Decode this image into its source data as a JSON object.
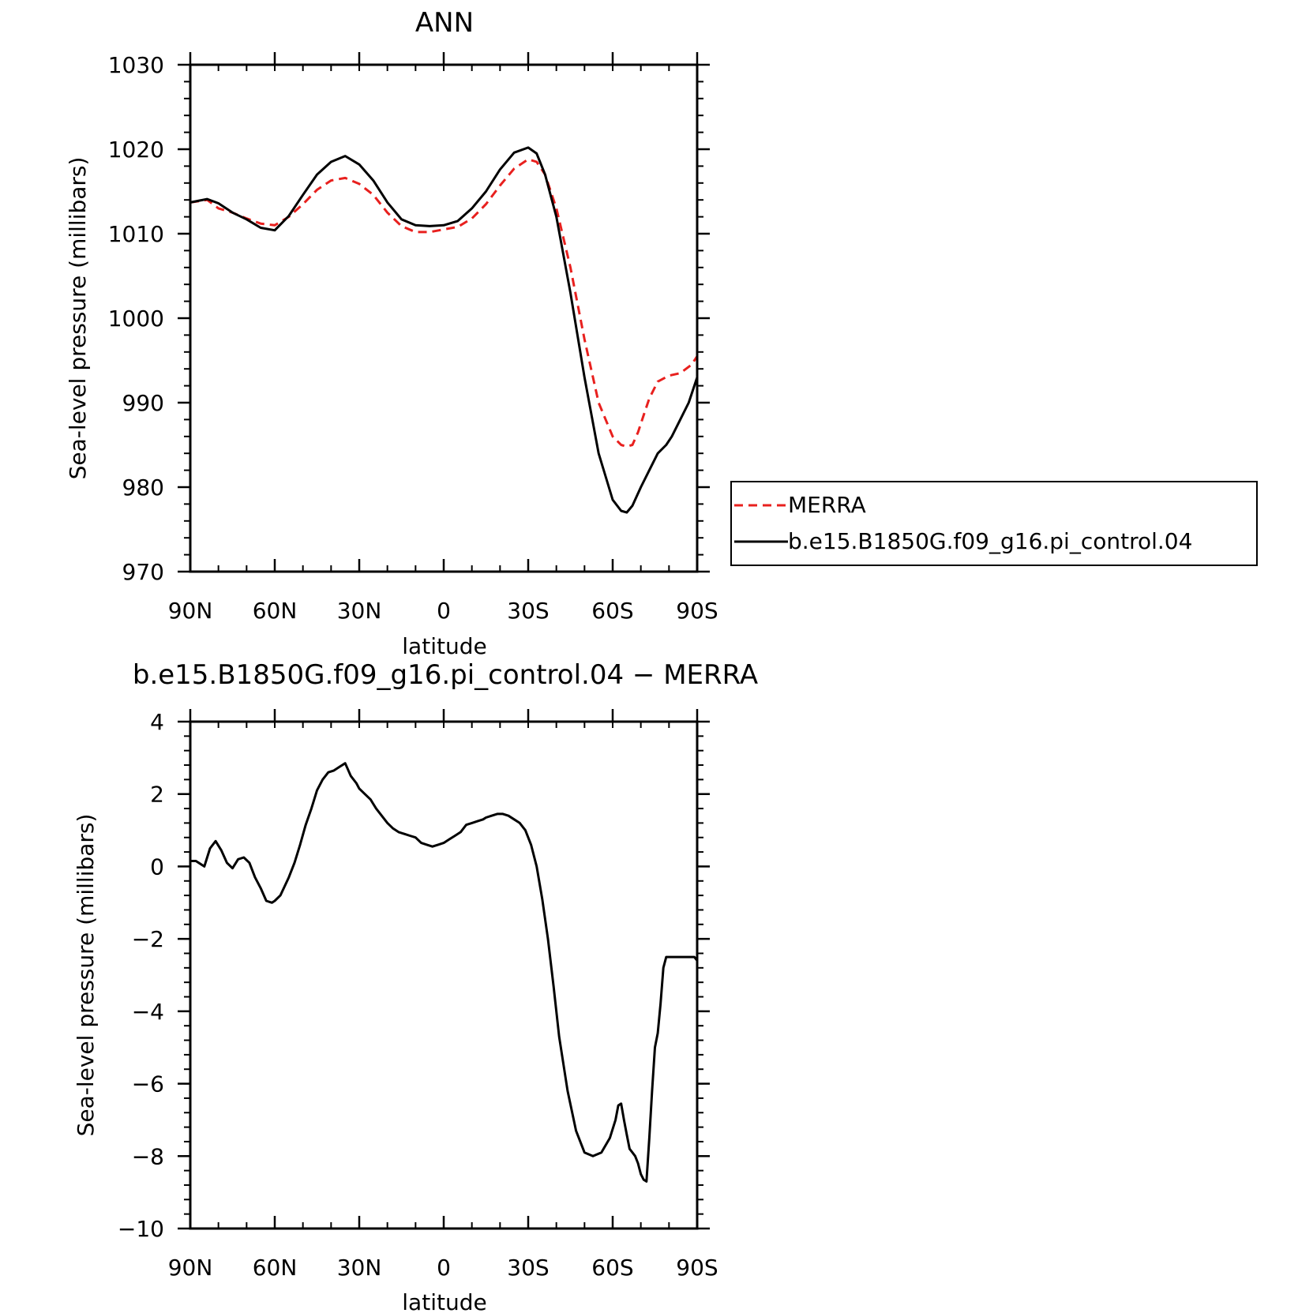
{
  "chart_data": [
    {
      "type": "line",
      "title": "ANN",
      "xlabel": "latitude",
      "ylabel": "Sea-level pressure (millibars)",
      "xlim": [
        90,
        -90
      ],
      "ylim": [
        970,
        1030
      ],
      "xticks": [
        90,
        60,
        30,
        0,
        -30,
        -60,
        -90
      ],
      "xtick_labels": [
        "90N",
        "60N",
        "30N",
        "0",
        "30S",
        "60S",
        "90S"
      ],
      "yticks": [
        970,
        980,
        990,
        1000,
        1010,
        1020,
        1030
      ],
      "ytick_labels": [
        "970",
        "980",
        "990",
        "1000",
        "1010",
        "1020",
        "1030"
      ],
      "grid": false,
      "legend_placement": "right",
      "series": [
        {
          "name": "MERRA",
          "color": "#e8201e",
          "style": "dashed",
          "x": [
            90,
            84,
            80,
            75,
            70,
            65,
            60,
            55,
            50,
            45,
            40,
            35,
            30,
            25,
            20,
            15,
            10,
            5,
            0,
            -5,
            -10,
            -15,
            -20,
            -25,
            -30,
            -33,
            -36,
            -40,
            -45,
            -50,
            -55,
            -60,
            -63,
            -65,
            -67,
            -69,
            -71,
            -73,
            -76,
            -80,
            -84,
            -88,
            -90
          ],
          "y": [
            1013.7,
            1014.0,
            1013.0,
            1012.5,
            1011.8,
            1011.2,
            1011.0,
            1012.0,
            1013.5,
            1015.2,
            1016.3,
            1016.6,
            1015.9,
            1014.6,
            1012.5,
            1010.9,
            1010.2,
            1010.2,
            1010.5,
            1010.8,
            1011.8,
            1013.5,
            1015.7,
            1017.7,
            1018.8,
            1018.5,
            1017.0,
            1013.0,
            1006.0,
            997.5,
            990.0,
            986.0,
            985.0,
            984.8,
            985.0,
            986.5,
            988.5,
            990.5,
            992.5,
            993.2,
            993.5,
            994.5,
            995.5
          ]
        },
        {
          "name": "b.e15.B1850G.f09_g16.pi_control.04",
          "color": "#000000",
          "style": "solid",
          "x": [
            90,
            84,
            80,
            75,
            70,
            65,
            60,
            55,
            50,
            45,
            40,
            35,
            30,
            25,
            20,
            15,
            10,
            5,
            0,
            -5,
            -10,
            -15,
            -20,
            -25,
            -30,
            -33,
            -36,
            -40,
            -45,
            -50,
            -55,
            -60,
            -63,
            -65,
            -67,
            -70,
            -73,
            -76,
            -79,
            -81,
            -84,
            -87,
            -90
          ],
          "y": [
            1013.7,
            1014.1,
            1013.6,
            1012.5,
            1011.7,
            1010.7,
            1010.4,
            1012.1,
            1014.6,
            1017.0,
            1018.5,
            1019.2,
            1018.2,
            1016.3,
            1013.7,
            1011.7,
            1011.0,
            1010.9,
            1011.0,
            1011.5,
            1013.0,
            1015.0,
            1017.6,
            1019.6,
            1020.2,
            1019.5,
            1017.0,
            1012.0,
            1003.0,
            993.0,
            984.0,
            978.5,
            977.2,
            977.0,
            977.8,
            980.0,
            982.0,
            984.0,
            985.0,
            986.0,
            988.0,
            990.0,
            993.0
          ]
        }
      ]
    },
    {
      "type": "line",
      "title": "b.e15.B1850G.f09_g16.pi_control.04 − MERRA",
      "xlabel": "latitude",
      "ylabel": "Sea-level pressure (millibars)",
      "xlim": [
        90,
        -90
      ],
      "ylim": [
        -10,
        4
      ],
      "xticks": [
        90,
        60,
        30,
        0,
        -30,
        -60,
        -90
      ],
      "xtick_labels": [
        "90N",
        "60N",
        "30N",
        "0",
        "30S",
        "60S",
        "90S"
      ],
      "yticks": [
        -10,
        -8,
        -6,
        -4,
        -2,
        0,
        2,
        4
      ],
      "ytick_labels": [
        "−10",
        "−8",
        "−6",
        "−4",
        "−2",
        "0",
        "2",
        "4"
      ],
      "grid": false,
      "series": [
        {
          "color": "#000000",
          "style": "solid",
          "x": [
            90,
            88,
            85,
            83,
            81,
            79,
            77,
            75,
            73,
            71,
            69,
            67,
            65,
            63,
            61,
            60,
            58,
            55,
            53,
            51,
            49,
            47,
            45,
            43,
            41,
            39,
            37,
            35,
            33,
            31,
            30,
            28,
            26,
            24,
            22,
            20,
            18,
            16,
            14,
            12,
            10,
            8,
            6,
            4,
            2,
            0,
            -2,
            -4,
            -6,
            -8,
            -10,
            -12,
            -14,
            -15,
            -17,
            -19,
            -21,
            -23,
            -25,
            -27,
            -29,
            -31,
            -33,
            -35,
            -37,
            -39,
            -41,
            -44,
            -47,
            -50,
            -53,
            -56,
            -59,
            -61,
            -62,
            -63,
            -64,
            -65,
            -66,
            -67,
            -68,
            -69,
            -70,
            -71,
            -72,
            -73,
            -74,
            -75,
            -76,
            -77,
            -78,
            -79,
            -80,
            -81,
            -82,
            -83,
            -84,
            -85,
            -86,
            -87,
            -88,
            -89,
            -90
          ],
          "y": [
            0.15,
            0.15,
            0.0,
            0.5,
            0.7,
            0.45,
            0.1,
            -0.05,
            0.2,
            0.25,
            0.1,
            -0.3,
            -0.6,
            -0.95,
            -1.0,
            -0.95,
            -0.8,
            -0.3,
            0.1,
            0.6,
            1.15,
            1.6,
            2.1,
            2.4,
            2.6,
            2.65,
            2.75,
            2.85,
            2.5,
            2.3,
            2.15,
            2.0,
            1.85,
            1.6,
            1.4,
            1.2,
            1.05,
            0.95,
            0.9,
            0.85,
            0.8,
            0.65,
            0.6,
            0.55,
            0.6,
            0.65,
            0.75,
            0.85,
            0.95,
            1.15,
            1.2,
            1.25,
            1.3,
            1.35,
            1.4,
            1.45,
            1.45,
            1.4,
            1.3,
            1.2,
            1.0,
            0.6,
            0.0,
            -0.9,
            -2.0,
            -3.3,
            -4.7,
            -6.2,
            -7.3,
            -7.9,
            -8.0,
            -7.9,
            -7.5,
            -7.0,
            -6.6,
            -6.55,
            -7.0,
            -7.4,
            -7.8,
            -7.9,
            -8.0,
            -8.2,
            -8.5,
            -8.65,
            -8.7,
            -7.5,
            -6.2,
            -5.0,
            -4.6,
            -3.8,
            -2.8,
            -2.5,
            -2.5,
            -2.5,
            -2.5,
            -2.5,
            -2.5,
            -2.5,
            -2.5,
            -2.5,
            -2.5,
            -2.5,
            -2.6
          ]
        }
      ]
    }
  ]
}
